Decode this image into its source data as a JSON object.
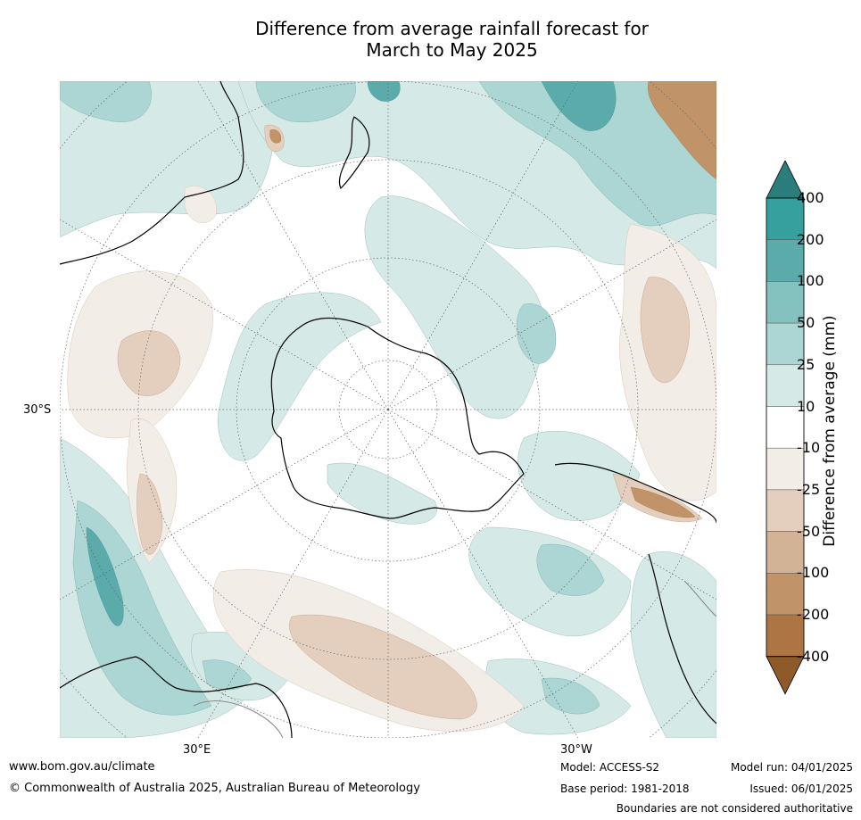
{
  "title": {
    "line1": "Difference from average rainfall forecast for",
    "line2": "March to May 2025"
  },
  "map": {
    "projection": "polar-stereographic-south",
    "lat_labels": [
      "30°S"
    ],
    "lon_labels": [
      "30°E",
      "30°W"
    ]
  },
  "colorbar": {
    "title": "Difference from average (mm)",
    "levels": [
      "400",
      "200",
      "100",
      "50",
      "25",
      "10",
      "-10",
      "-25",
      "-50",
      "-100",
      "-200",
      "-400"
    ],
    "colors": [
      "#2a7d7b",
      "#35a09e",
      "#5aabaa",
      "#84c2c0",
      "#acd6d4",
      "#d5e9e7",
      "#ffffff",
      "#f2ede7",
      "#e4cfbf",
      "#d3b395",
      "#c09468",
      "#ad7543",
      "#8f5a29"
    ]
  },
  "footer": {
    "website": "www.bom.gov.au/climate",
    "copyright": "© Commonwealth of Australia 2025, Australian Bureau of Meteorology",
    "model": "Model: ACCESS-S2",
    "base_period": "Base period: 1981-2018",
    "model_run": "Model run: 04/01/2025",
    "issued": "Issued: 06/01/2025",
    "disclaimer": "Boundaries are not considered authoritative"
  }
}
